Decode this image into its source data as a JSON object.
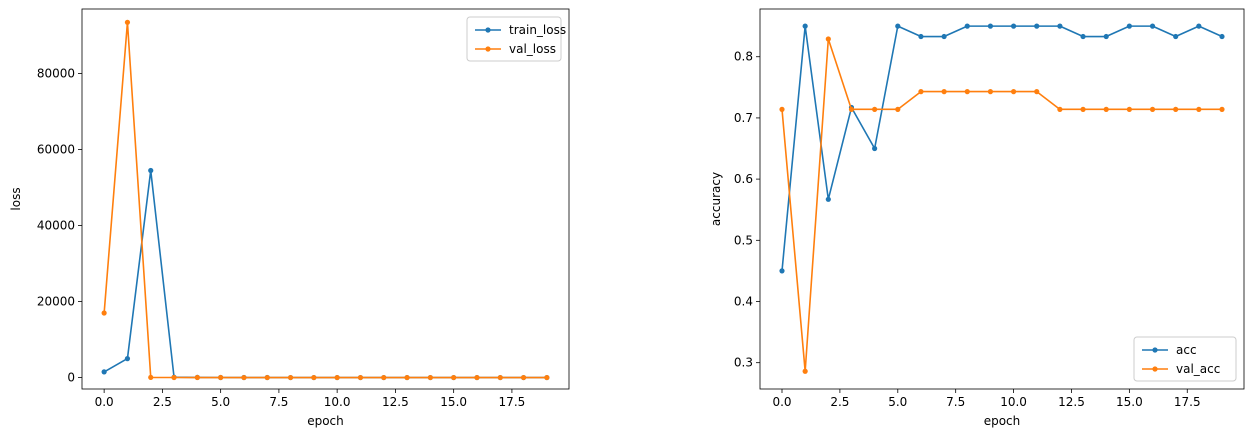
{
  "chart_data": [
    {
      "type": "line",
      "title": "",
      "xlabel": "epoch",
      "ylabel": "loss",
      "xlim": [
        -0.95,
        19.95
      ],
      "ylim": [
        -3000,
        97000
      ],
      "xticks": [
        0,
        2.5,
        5,
        7.5,
        10,
        12.5,
        15,
        17.5
      ],
      "xtick_labels": [
        "0.0",
        "2.5",
        "5.0",
        "7.5",
        "10.0",
        "12.5",
        "15.0",
        "17.5"
      ],
      "yticks": [
        0,
        20000,
        40000,
        60000,
        80000
      ],
      "ytick_labels": [
        "0",
        "20000",
        "40000",
        "60000",
        "80000"
      ],
      "legend_loc": "upper-right",
      "x": [
        0,
        1,
        2,
        3,
        4,
        5,
        6,
        7,
        8,
        9,
        10,
        11,
        12,
        13,
        14,
        15,
        16,
        17,
        18,
        19
      ],
      "series": [
        {
          "name": "train_loss",
          "color": "#1f77b4",
          "values": [
            1500,
            5000,
            54500,
            100,
            50,
            30,
            20,
            20,
            15,
            15,
            10,
            10,
            10,
            10,
            10,
            10,
            10,
            10,
            10,
            10
          ]
        },
        {
          "name": "val_loss",
          "color": "#ff7f0e",
          "values": [
            17000,
            93500,
            50,
            30,
            20,
            20,
            15,
            15,
            10,
            10,
            10,
            10,
            10,
            10,
            10,
            10,
            10,
            10,
            10,
            10
          ]
        }
      ]
    },
    {
      "type": "line",
      "title": "",
      "xlabel": "epoch",
      "ylabel": "accuracy",
      "xlim": [
        -0.95,
        19.95
      ],
      "ylim": [
        0.257,
        0.878
      ],
      "xticks": [
        0,
        2.5,
        5,
        7.5,
        10,
        12.5,
        15,
        17.5
      ],
      "xtick_labels": [
        "0.0",
        "2.5",
        "5.0",
        "7.5",
        "10.0",
        "12.5",
        "15.0",
        "17.5"
      ],
      "yticks": [
        0.3,
        0.4,
        0.5,
        0.6,
        0.7,
        0.8
      ],
      "ytick_labels": [
        "0.3",
        "0.4",
        "0.5",
        "0.6",
        "0.7",
        "0.8"
      ],
      "legend_loc": "lower-right",
      "x": [
        0,
        1,
        2,
        3,
        4,
        5,
        6,
        7,
        8,
        9,
        10,
        11,
        12,
        13,
        14,
        15,
        16,
        17,
        18,
        19
      ],
      "series": [
        {
          "name": "acc",
          "color": "#1f77b4",
          "values": [
            0.45,
            0.85,
            0.567,
            0.717,
            0.65,
            0.85,
            0.833,
            0.833,
            0.85,
            0.85,
            0.85,
            0.85,
            0.85,
            0.833,
            0.833,
            0.85,
            0.85,
            0.833,
            0.85,
            0.833
          ]
        },
        {
          "name": "val_acc",
          "color": "#ff7f0e",
          "values": [
            0.714,
            0.286,
            0.829,
            0.714,
            0.714,
            0.714,
            0.743,
            0.743,
            0.743,
            0.743,
            0.743,
            0.743,
            0.714,
            0.714,
            0.714,
            0.714,
            0.714,
            0.714,
            0.714,
            0.714
          ]
        }
      ]
    }
  ]
}
